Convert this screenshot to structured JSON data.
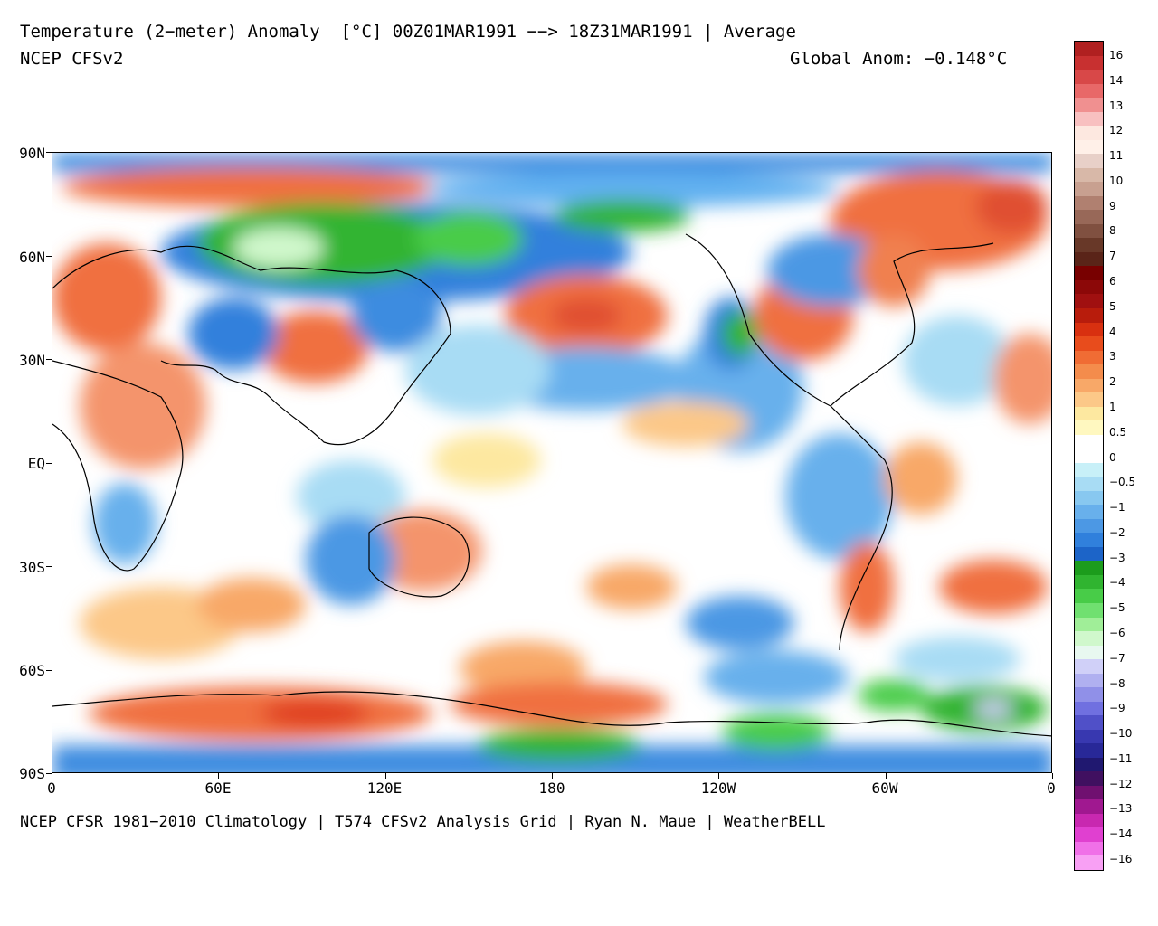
{
  "header": {
    "title": "Temperature (2−meter) Anomaly  [°C] 00Z01MAR1991 −−> 18Z31MAR1991 | Average",
    "subtitle": "NCEP CFSv2",
    "global_anomaly": "Global Anom: −0.148°C"
  },
  "footer": {
    "credits": "NCEP CFSR 1981−2010 Climatology | T574 CFSv2 Analysis Grid | Ryan N. Maue | WeatherBELL"
  },
  "axes": {
    "lat_labels": [
      "90N",
      "60N",
      "30N",
      "EQ",
      "30S",
      "60S",
      "90S"
    ],
    "lon_labels": [
      "0",
      "60E",
      "120E",
      "180",
      "120W",
      "60W",
      "0"
    ]
  },
  "colorbar": {
    "labels": [
      "16",
      "14",
      "13",
      "12",
      "11",
      "10",
      "9",
      "8",
      "7",
      "6",
      "5",
      "4",
      "3",
      "2",
      "1",
      "0.5",
      "0",
      "−0.5",
      "−1",
      "−2",
      "−3",
      "−4",
      "−5",
      "−6",
      "−7",
      "−8",
      "−9",
      "−10",
      "−11",
      "−12",
      "−13",
      "−14",
      "−16"
    ],
    "colors": [
      "#b02020",
      "#c83030",
      "#d84848",
      "#e86868",
      "#f09090",
      "#f8c0c0",
      "#fde8e0",
      "#fff0e8",
      "#e8d0c8",
      "#d8b8a8",
      "#c8a090",
      "#b08070",
      "#986858",
      "#805040",
      "#683828",
      "#5a2418",
      "#780000",
      "#8c0808",
      "#a01010",
      "#b81c0c",
      "#d83010",
      "#e84c1c",
      "#f06c34",
      "#f48c4c",
      "#f8a868",
      "#fcc888",
      "#fde8a0",
      "#fff8c0",
      "#ffffff",
      "#ffffff",
      "#c8f0f8",
      "#a8dcf4",
      "#88c8f0",
      "#68b0ec",
      "#4c98e4",
      "#3080dc",
      "#1c64c8",
      "#1c9c1c",
      "#30b430",
      "#48cc48",
      "#70e070",
      "#a0ee98",
      "#d0f8cc",
      "#e8f8f0",
      "#d0d0f8",
      "#b0b0f0",
      "#9090e8",
      "#7070e0",
      "#5050c8",
      "#3838b0",
      "#282898",
      "#201870",
      "#401060",
      "#701070",
      "#a01890",
      "#c828b0",
      "#e040d0",
      "#f070e8",
      "#f8a0f4"
    ]
  }
}
